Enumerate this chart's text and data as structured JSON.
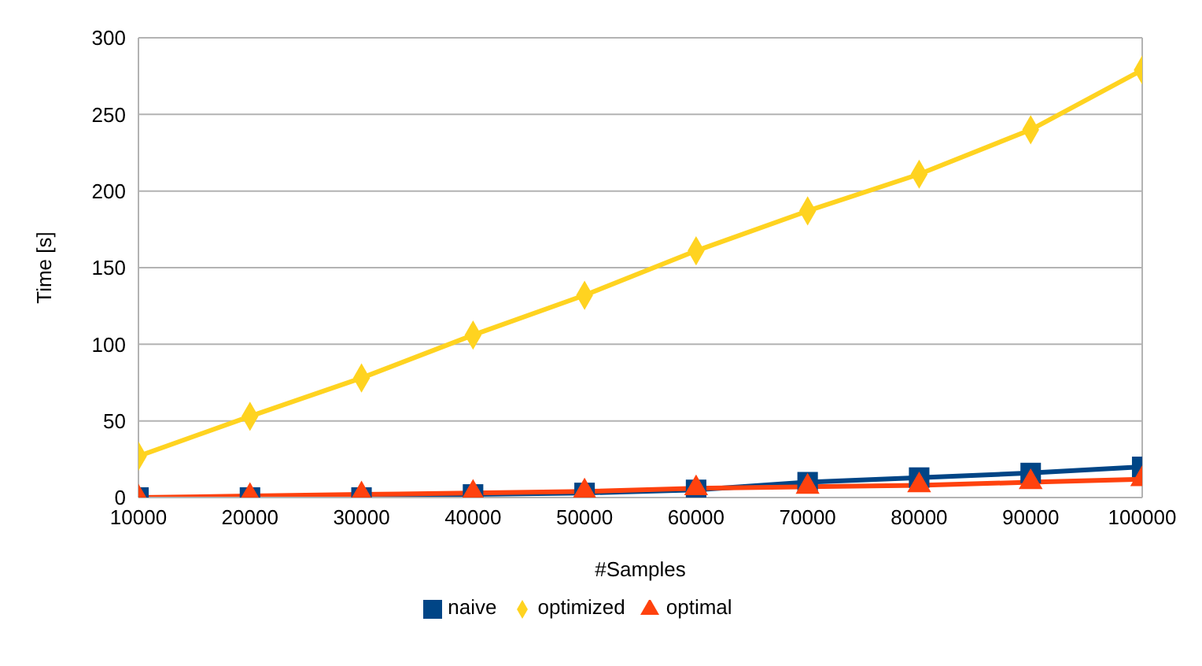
{
  "chart_data": {
    "type": "line",
    "xlabel": "#Samples",
    "ylabel": "Time [s]",
    "x": [
      10000,
      20000,
      30000,
      40000,
      50000,
      60000,
      70000,
      80000,
      90000,
      100000
    ],
    "xlim": [
      10000,
      100000
    ],
    "xticks": [
      10000,
      20000,
      30000,
      40000,
      50000,
      60000,
      70000,
      80000,
      90000,
      100000
    ],
    "ylim": [
      0,
      300
    ],
    "yticks": [
      0,
      50,
      100,
      150,
      200,
      250,
      300
    ],
    "grid": "y",
    "legend": "bottom",
    "series": [
      {
        "name": "naive",
        "color": "#004586",
        "marker": "square",
        "values": [
          0,
          0,
          0,
          2,
          3,
          5,
          10,
          13,
          16,
          20
        ]
      },
      {
        "name": "optimized",
        "color": "#ffd320",
        "marker": "diamond",
        "values": [
          27,
          53,
          78,
          106,
          132,
          161,
          187,
          211,
          240,
          279
        ]
      },
      {
        "name": "optimal",
        "color": "#ff420e",
        "marker": "triangle",
        "values": [
          0,
          1,
          2,
          3,
          4,
          6,
          7,
          8,
          10,
          12
        ]
      }
    ]
  }
}
